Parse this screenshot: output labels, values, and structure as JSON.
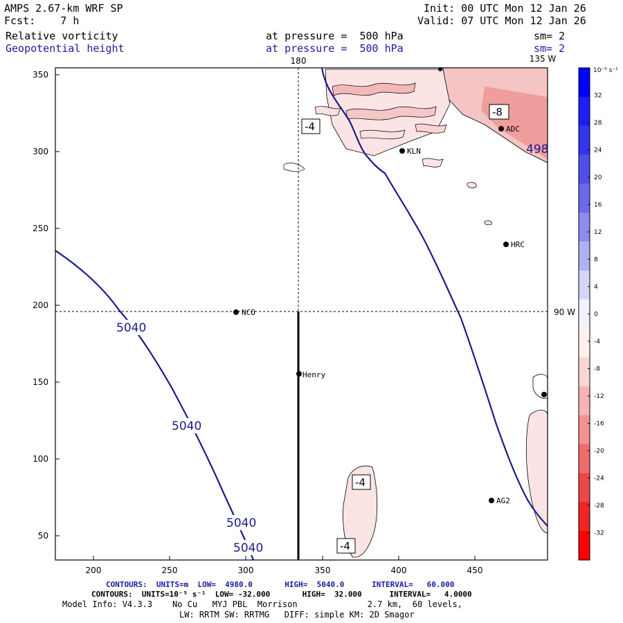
{
  "header": {
    "model": "AMPS 2.67-km WRF SP",
    "forecast": "Fcst:    7 h",
    "init": "Init: 00 UTC Mon 12 Jan 26",
    "valid": "Valid: 07 UTC Mon 12 Jan 26",
    "field1_name": "Relative vorticity",
    "field1_level": "at pressure =  500 hPa",
    "field1_smooth": "sm= 2",
    "field2_name": "Geopotential height",
    "field2_level": "at pressure =  500 hPa",
    "field2_smooth": "sm= 2"
  },
  "map": {
    "lon_labels": {
      "top_180": "180",
      "top_135w": "135 W",
      "right_90w": "90 W"
    },
    "x_ticks": [
      "200",
      "250",
      "300",
      "350",
      "400",
      "450"
    ],
    "y_ticks": [
      "350",
      "300",
      "250",
      "200",
      "150",
      "100",
      "50"
    ],
    "stations": [
      {
        "name": "NCO"
      },
      {
        "name": "Henry"
      },
      {
        "name": "KLN"
      },
      {
        "name": "ADC"
      },
      {
        "name": "HRC"
      },
      {
        "name": "AG2"
      }
    ],
    "height_labels": [
      "5040",
      "5040",
      "5040",
      "5040",
      "498"
    ],
    "vort_labels": [
      "-4",
      "-8",
      "-4",
      "-4"
    ]
  },
  "colorbar": {
    "unit": "10⁻⁵ s⁻¹",
    "ticks": [
      "32",
      "28",
      "24",
      "20",
      "16",
      "12",
      "8",
      "4",
      "0",
      "-4",
      "-8",
      "-12",
      "-16",
      "-20",
      "-24",
      "-28",
      "-32"
    ],
    "colors": [
      "#0000ff",
      "#1e1ef6",
      "#3535ee",
      "#4f4fe8",
      "#6b6be8",
      "#8c8cee",
      "#b0b0f4",
      "#d6d6fa",
      "#f2f2ff",
      "#fff0f0",
      "#fbd6d6",
      "#f7b4b4",
      "#f39090",
      "#ef6c6c",
      "#eb4848",
      "#f02424",
      "#ff0000"
    ]
  },
  "footer": {
    "contours1": "CONTOURS:  UNITS=m  LOW=  4980.0       HIGH=  5040.0      INTERVAL=   60.000",
    "contours2": "CONTOURS:  UNITS=10⁻⁵ s⁻¹  LOW= -32.000       HIGH=  32.000      INTERVAL=   4.0000",
    "model_info": "Model Info: V4.3.3    No Cu   MYJ PBL  Morrison              2.7 km,  60 levels,",
    "physics": "LW: RRTM SW: RRTMG   DIFF: simple KM: 2D Smagor"
  }
}
